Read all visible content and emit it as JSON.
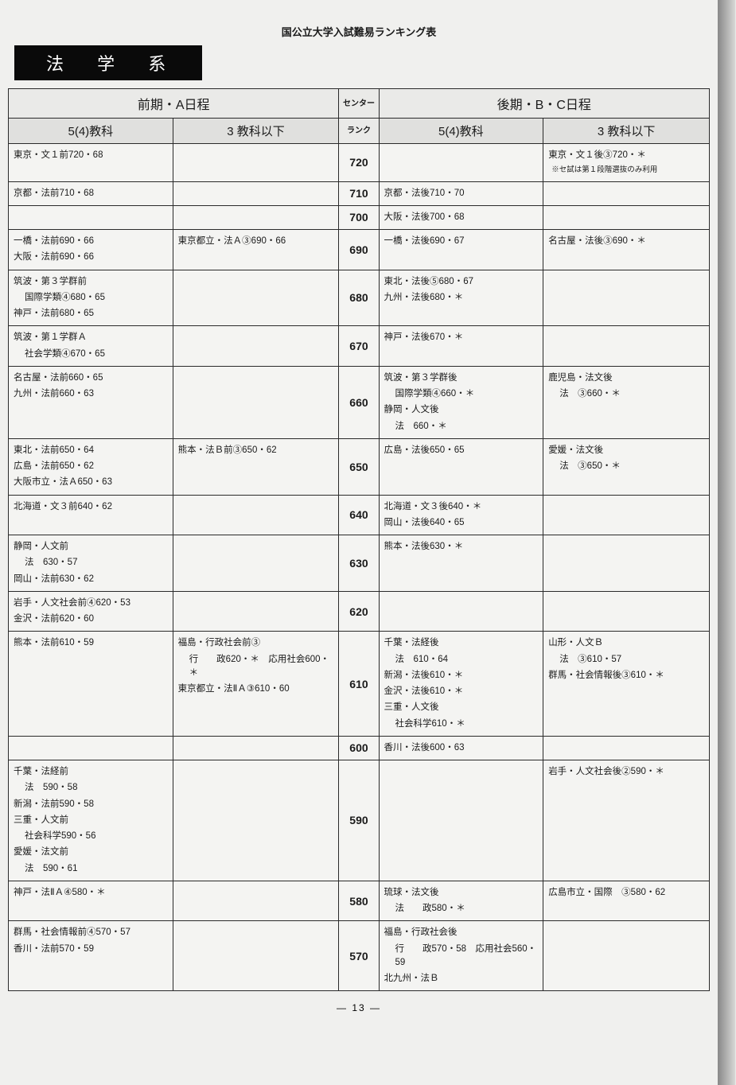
{
  "doc_title": "国公立大学入試難易ランキング表",
  "category": "法 学 系",
  "page_number": "— 13 —",
  "headers": {
    "left_super": "前期・A日程",
    "right_super": "後期・B・C日程",
    "col_5_4": "5(4)教科",
    "col_3_below": "3 教科以下",
    "center_top": "センター",
    "center_bottom": "ランク"
  },
  "rows": [
    {
      "score": "720",
      "l5": [
        "東京・文１前720・68"
      ],
      "l3": [],
      "r5": [],
      "r3": [
        "東京・文１後③720・＊",
        {
          "note": "※セ試は第１段階選抜のみ利用"
        }
      ]
    },
    {
      "score": "710",
      "l5": [
        "京都・法前710・68"
      ],
      "l3": [],
      "r5": [
        "京都・法後710・70"
      ],
      "r3": []
    },
    {
      "score": "700",
      "l5": [],
      "l3": [],
      "r5": [
        "大阪・法後700・68"
      ],
      "r3": []
    },
    {
      "score": "690",
      "l5": [
        "一橋・法前690・66",
        "大阪・法前690・66"
      ],
      "l3": [
        "東京都立・法Ａ③690・66"
      ],
      "r5": [
        "一橋・法後690・67"
      ],
      "r3": [
        "名古屋・法後③690・＊"
      ]
    },
    {
      "score": "680",
      "l5": [
        "筑波・第３学群前",
        {
          "indent": "国際学類④680・65"
        },
        "神戸・法前680・65"
      ],
      "l3": [],
      "r5": [
        "東北・法後⑤680・67",
        "九州・法後680・＊"
      ],
      "r3": []
    },
    {
      "score": "670",
      "l5": [
        "筑波・第１学群Ａ",
        {
          "indent": "社会学類④670・65"
        }
      ],
      "l3": [],
      "r5": [
        "神戸・法後670・＊"
      ],
      "r3": []
    },
    {
      "score": "660",
      "l5": [
        "名古屋・法前660・65",
        "九州・法前660・63"
      ],
      "l3": [],
      "r5": [
        "筑波・第３学群後",
        {
          "indent": "国際学類④660・＊"
        },
        "静岡・人文後",
        {
          "indent": "法　660・＊"
        }
      ],
      "r3": [
        "鹿児島・法文後",
        {
          "indent": "法　③660・＊"
        }
      ]
    },
    {
      "score": "650",
      "l5": [
        "東北・法前650・64",
        "広島・法前650・62",
        "大阪市立・法Ａ650・63"
      ],
      "l3": [
        "熊本・法Ｂ前③650・62"
      ],
      "r5": [
        "広島・法後650・65"
      ],
      "r3": [
        "愛媛・法文後",
        {
          "indent": "法　③650・＊"
        }
      ]
    },
    {
      "score": "640",
      "l5": [
        "北海道・文３前640・62"
      ],
      "l3": [],
      "r5": [
        "北海道・文３後640・＊",
        "岡山・法後640・65"
      ],
      "r3": []
    },
    {
      "score": "630",
      "l5": [
        "静岡・人文前",
        {
          "indent": "法　630・57"
        },
        "岡山・法前630・62"
      ],
      "l3": [],
      "r5": [
        "熊本・法後630・＊"
      ],
      "r3": []
    },
    {
      "score": "620",
      "l5": [
        "岩手・人文社会前④620・53",
        "金沢・法前620・60"
      ],
      "l3": [],
      "r5": [],
      "r3": []
    },
    {
      "score": "610",
      "l5": [
        "熊本・法前610・59"
      ],
      "l3": [
        "福島・行政社会前③",
        {
          "indent": "行　　政620・＊　応用社会600・＊"
        },
        "東京都立・法ⅡＡ③610・60"
      ],
      "r5": [
        "千葉・法経後",
        {
          "indent": "法　610・64"
        },
        "新潟・法後610・＊",
        "金沢・法後610・＊",
        "三重・人文後",
        {
          "indent": "社会科学610・＊"
        }
      ],
      "r3": [
        "山形・人文Ｂ",
        {
          "indent": "法　③610・57"
        },
        "群馬・社会情報後③610・＊"
      ]
    },
    {
      "score": "600",
      "l5": [],
      "l3": [],
      "r5": [
        "香川・法後600・63"
      ],
      "r3": []
    },
    {
      "score": "590",
      "l5": [
        "千葉・法経前",
        {
          "indent": "法　590・58"
        },
        "新潟・法前590・58",
        "三重・人文前",
        {
          "indent": "社会科学590・56"
        },
        "愛媛・法文前",
        {
          "indent": "法　590・61"
        }
      ],
      "l3": [],
      "r5": [],
      "r3": [
        "岩手・人文社会後②590・＊"
      ]
    },
    {
      "score": "580",
      "l5": [
        "神戸・法ⅡＡ④580・＊"
      ],
      "l3": [],
      "r5": [
        "琉球・法文後",
        {
          "indent": "法　　政580・＊"
        }
      ],
      "r3": [
        "広島市立・国際　③580・62"
      ]
    },
    {
      "score": "570",
      "l5": [
        "群馬・社会情報前④570・57",
        "香川・法前570・59"
      ],
      "l3": [],
      "r5": [
        "福島・行政社会後",
        {
          "indent": "行　　政570・58　応用社会560・59"
        },
        "北九州・法Ｂ"
      ],
      "r3": []
    }
  ]
}
